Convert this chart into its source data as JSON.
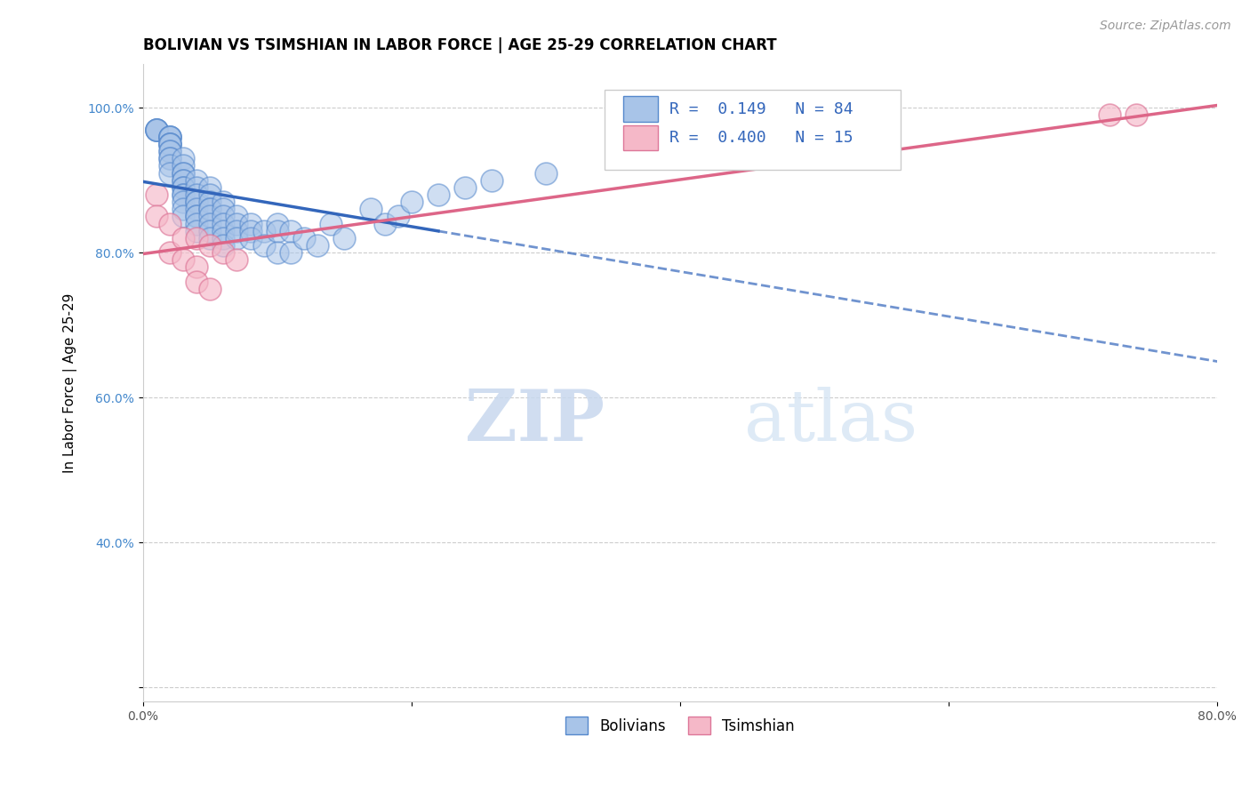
{
  "title": "BOLIVIAN VS TSIMSHIAN IN LABOR FORCE | AGE 25-29 CORRELATION CHART",
  "source_text": "Source: ZipAtlas.com",
  "ylabel": "In Labor Force | Age 25-29",
  "xlim": [
    0.0,
    0.8
  ],
  "ylim": [
    0.18,
    1.06
  ],
  "xticks": [
    0.0,
    0.2,
    0.4,
    0.6,
    0.8
  ],
  "xticklabels": [
    "0.0%",
    "",
    "",
    "",
    "80.0%"
  ],
  "yticks": [
    0.2,
    0.4,
    0.6,
    0.8,
    1.0
  ],
  "yticklabels": [
    "",
    "40.0%",
    "60.0%",
    "80.0%",
    "100.0%"
  ],
  "bolivians_x": [
    0.01,
    0.01,
    0.01,
    0.01,
    0.01,
    0.02,
    0.02,
    0.02,
    0.02,
    0.02,
    0.02,
    0.02,
    0.02,
    0.02,
    0.02,
    0.02,
    0.02,
    0.02,
    0.02,
    0.03,
    0.03,
    0.03,
    0.03,
    0.03,
    0.03,
    0.03,
    0.03,
    0.03,
    0.03,
    0.03,
    0.03,
    0.03,
    0.04,
    0.04,
    0.04,
    0.04,
    0.04,
    0.04,
    0.04,
    0.04,
    0.04,
    0.04,
    0.05,
    0.05,
    0.05,
    0.05,
    0.05,
    0.05,
    0.05,
    0.05,
    0.05,
    0.06,
    0.06,
    0.06,
    0.06,
    0.06,
    0.06,
    0.06,
    0.07,
    0.07,
    0.07,
    0.07,
    0.08,
    0.08,
    0.08,
    0.09,
    0.09,
    0.1,
    0.1,
    0.1,
    0.11,
    0.11,
    0.12,
    0.13,
    0.14,
    0.15,
    0.17,
    0.18,
    0.19,
    0.2,
    0.22,
    0.24,
    0.26,
    0.3
  ],
  "bolivians_y": [
    0.97,
    0.97,
    0.97,
    0.97,
    0.97,
    0.96,
    0.96,
    0.96,
    0.96,
    0.95,
    0.95,
    0.95,
    0.95,
    0.94,
    0.94,
    0.93,
    0.93,
    0.92,
    0.91,
    0.93,
    0.92,
    0.91,
    0.91,
    0.9,
    0.9,
    0.89,
    0.89,
    0.88,
    0.88,
    0.87,
    0.86,
    0.85,
    0.9,
    0.89,
    0.88,
    0.87,
    0.87,
    0.86,
    0.85,
    0.85,
    0.84,
    0.83,
    0.89,
    0.88,
    0.87,
    0.86,
    0.86,
    0.85,
    0.84,
    0.83,
    0.82,
    0.87,
    0.86,
    0.85,
    0.84,
    0.83,
    0.82,
    0.81,
    0.85,
    0.84,
    0.83,
    0.82,
    0.84,
    0.83,
    0.82,
    0.83,
    0.81,
    0.84,
    0.83,
    0.8,
    0.83,
    0.8,
    0.82,
    0.81,
    0.84,
    0.82,
    0.86,
    0.84,
    0.85,
    0.87,
    0.88,
    0.89,
    0.9,
    0.91
  ],
  "tsimshian_x": [
    0.01,
    0.01,
    0.02,
    0.02,
    0.03,
    0.03,
    0.04,
    0.04,
    0.04,
    0.05,
    0.05,
    0.06,
    0.07,
    0.72,
    0.74
  ],
  "tsimshian_y": [
    0.88,
    0.85,
    0.84,
    0.8,
    0.82,
    0.79,
    0.78,
    0.82,
    0.76,
    0.81,
    0.75,
    0.8,
    0.79,
    0.99,
    0.99
  ],
  "bolivian_R": 0.149,
  "bolivian_N": 84,
  "tsimshian_R": 0.4,
  "tsimshian_N": 15,
  "blue_fill": "#A8C4E8",
  "blue_edge": "#5588CC",
  "pink_fill": "#F5B8C8",
  "pink_edge": "#DD7799",
  "blue_line_color": "#3366BB",
  "pink_line_color": "#DD6688",
  "title_fontsize": 12,
  "axis_label_fontsize": 11,
  "tick_fontsize": 10,
  "source_fontsize": 10
}
